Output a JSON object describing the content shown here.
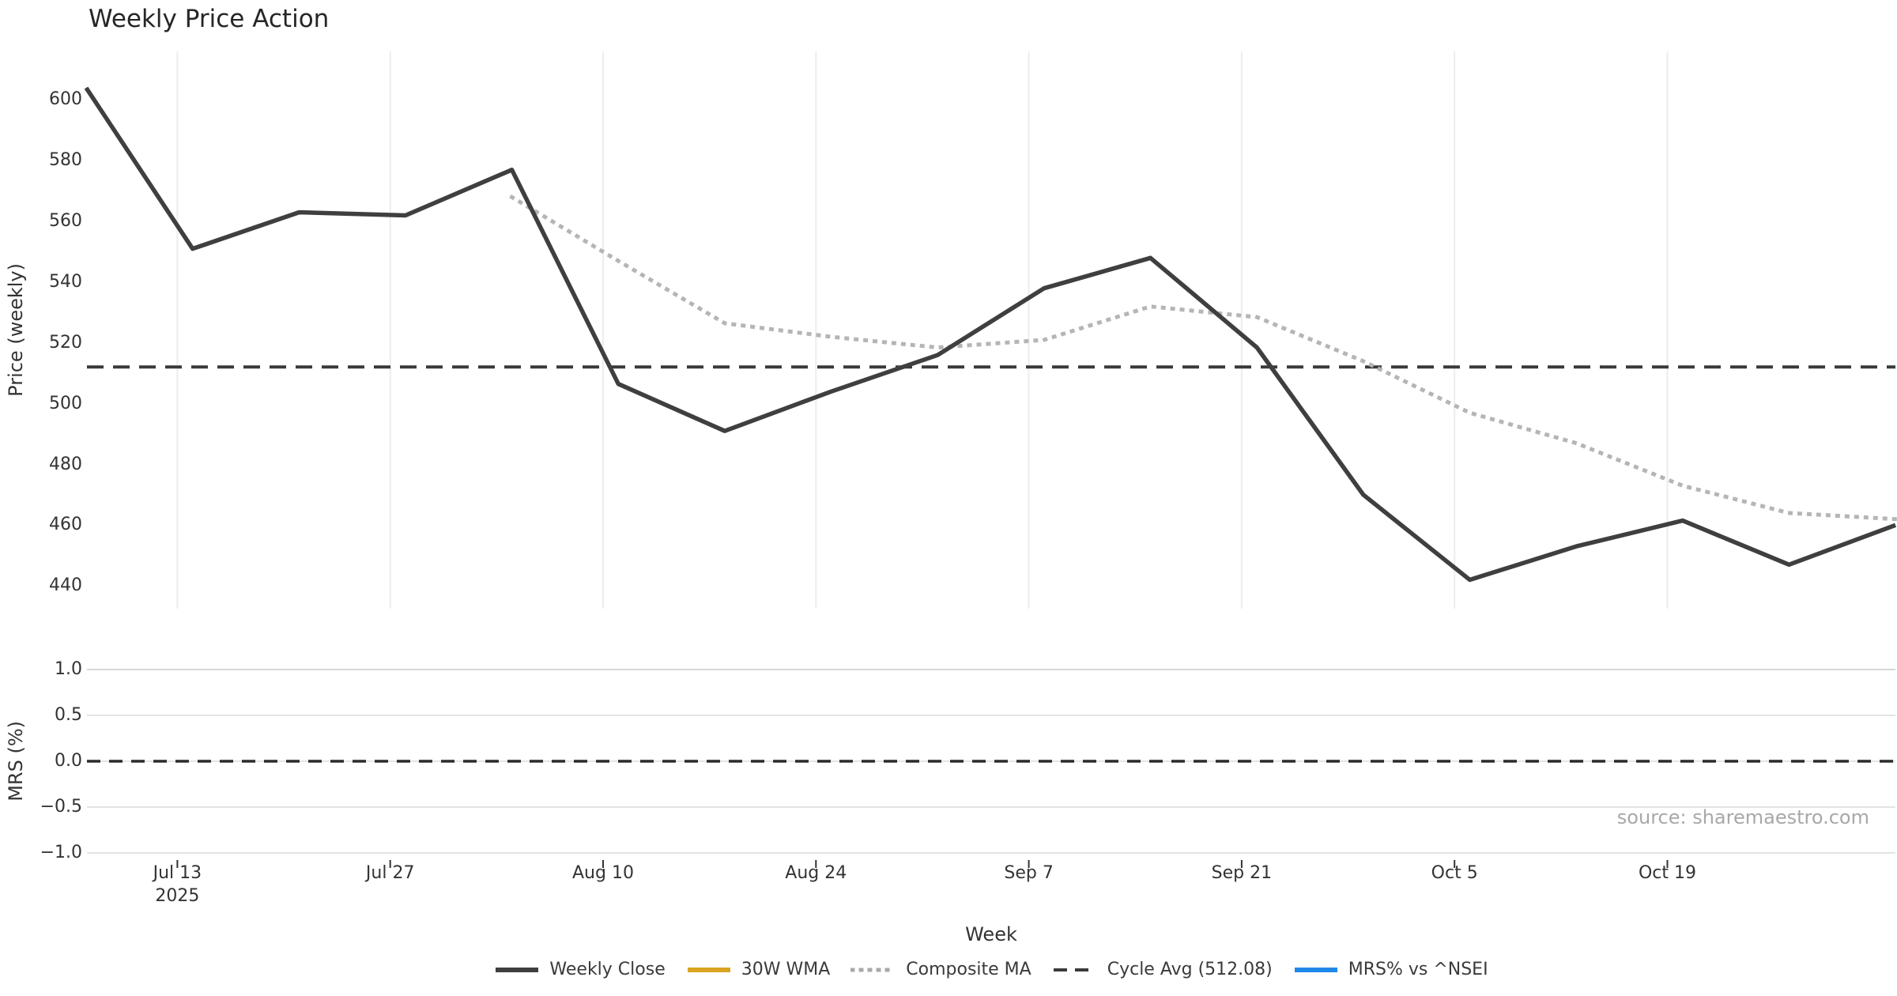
{
  "title": "Weekly Price Action",
  "xlabel": "Week",
  "source_text": "source: sharemaestro.com",
  "price_panel": {
    "ylabel": "Price (weekly)",
    "yticks": [
      600,
      580,
      560,
      540,
      520,
      500,
      480,
      460,
      440
    ]
  },
  "mrs_panel": {
    "ylabel": "MRS (%)",
    "yticks": [
      {
        "label": "1.0",
        "value": 1.0
      },
      {
        "label": "0.5",
        "value": 0.5
      },
      {
        "label": "0.0",
        "value": 0.0
      },
      {
        "label": "−0.5",
        "value": -0.5
      },
      {
        "label": "−1.0",
        "value": -1.0
      }
    ]
  },
  "xticks": [
    {
      "label": "Jul 13",
      "sublabel": "2025",
      "week_offset": 0.857
    },
    {
      "label": "Jul 27",
      "sublabel": "",
      "week_offset": 2.857
    },
    {
      "label": "Aug 10",
      "sublabel": "",
      "week_offset": 4.857
    },
    {
      "label": "Aug 24",
      "sublabel": "",
      "week_offset": 6.857
    },
    {
      "label": "Sep 7",
      "sublabel": "",
      "week_offset": 8.857
    },
    {
      "label": "Sep 21",
      "sublabel": "",
      "week_offset": 10.857
    },
    {
      "label": "Oct 5",
      "sublabel": "",
      "week_offset": 12.857
    },
    {
      "label": "Oct 19",
      "sublabel": "",
      "week_offset": 14.857
    }
  ],
  "legend": [
    {
      "label": "Weekly Close",
      "style": "solid",
      "color": "#3f3f3f"
    },
    {
      "label": "30W WMA",
      "style": "solid",
      "color": "#d9a521"
    },
    {
      "label": "Composite MA",
      "style": "dotted",
      "color": "#a9a9a9"
    },
    {
      "label": "Cycle Avg (512.08)",
      "style": "dashed",
      "color": "#3a3a3a"
    },
    {
      "label": "MRS% vs ^NSEI",
      "style": "solid",
      "color": "#2088e8"
    }
  ],
  "colors": {
    "weekly_close": "#3f3f3f",
    "composite_ma": "#b5b5b5",
    "cycle_avg": "#3a3a3a",
    "zero_line": "#2b2b2b",
    "grid_vertical": "#ededed",
    "grid_horizontal": "#e4e4e4",
    "tick_text": "#333333",
    "source_text": "#a8a8a8"
  },
  "chart_data": [
    {
      "type": "line",
      "title": "Weekly Price Action",
      "xlabel": "Week",
      "ylabel": "Price (weekly)",
      "x": [
        "Jul 7",
        "Jul 14",
        "Jul 21",
        "Jul 28",
        "Aug 4",
        "Aug 11",
        "Aug 18",
        "Aug 25",
        "Sep 1",
        "Sep 8",
        "Sep 15",
        "Sep 22",
        "Sep 29",
        "Oct 6",
        "Oct 13",
        "Oct 20",
        "Oct 27",
        "Nov 3"
      ],
      "series": [
        {
          "name": "Weekly Close",
          "style": "solid",
          "color": "#3f3f3f",
          "values": [
            604,
            551,
            563,
            562,
            577,
            506.5,
            491,
            504,
            516,
            538,
            548,
            518.5,
            470,
            442,
            453,
            461.5,
            447,
            460
          ]
        },
        {
          "name": "Composite MA",
          "style": "dotted",
          "color": "#b5b5b5",
          "values": [
            null,
            null,
            null,
            null,
            568,
            547,
            526.5,
            522,
            518.5,
            521,
            532,
            528.5,
            514,
            497,
            487,
            473,
            464,
            462
          ]
        },
        {
          "name": "30W WMA",
          "style": "solid",
          "color": "#d9a521",
          "visible": false,
          "values": []
        },
        {
          "name": "Cycle Avg",
          "style": "dashed",
          "color": "#3a3a3a",
          "constant": 512.08
        }
      ],
      "ylim": [
        432.5,
        616
      ],
      "yticks": [
        440,
        460,
        480,
        500,
        520,
        540,
        560,
        580,
        600
      ],
      "grid": "vertical-only",
      "legend_position": "bottom"
    },
    {
      "type": "line",
      "ylabel": "MRS (%)",
      "series": [
        {
          "name": "MRS% vs ^NSEI",
          "style": "solid",
          "color": "#2088e8",
          "visible": false,
          "values": []
        },
        {
          "name": "zero line",
          "style": "dashed",
          "color": "#2b2b2b",
          "constant": 0.0
        }
      ],
      "ylim": [
        -1.08,
        1.18
      ],
      "yticks": [
        1.0,
        0.5,
        0.0,
        -0.5,
        -1.0
      ],
      "grid": "horizontal-only"
    }
  ]
}
